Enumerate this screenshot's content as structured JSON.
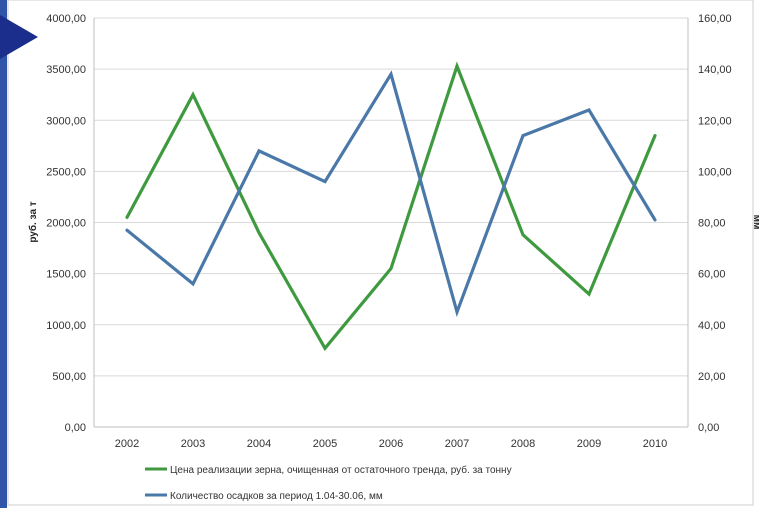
{
  "chart_data": {
    "type": "line",
    "categories": [
      "2002",
      "2003",
      "2004",
      "2005",
      "2006",
      "2007",
      "2008",
      "2009",
      "2010"
    ],
    "y_left": {
      "label": "руб. за т",
      "ylim": [
        0,
        4000
      ],
      "ticks": [
        "0,00",
        "500,00",
        "1000,00",
        "1500,00",
        "2000,00",
        "2500,00",
        "3000,00",
        "3500,00",
        "4000,00"
      ]
    },
    "y_right": {
      "label": "мм",
      "ylim": [
        0,
        160
      ],
      "ticks": [
        "0,00",
        "20,00",
        "40,00",
        "60,00",
        "80,00",
        "100,00",
        "120,00",
        "140,00",
        "160,00"
      ]
    },
    "series": [
      {
        "name": "Цена реализации зерна, очищенная от остаточного тренда, руб. за тонну",
        "axis": "left",
        "color": "#3f9a3f",
        "values": [
          2050,
          3250,
          1900,
          770,
          1550,
          3530,
          1880,
          1300,
          2850
        ]
      },
      {
        "name": "Количество осадков за период 1.04-30.06, мм",
        "axis": "right",
        "color": "#4a78a8",
        "values": [
          77,
          56,
          108,
          96,
          138,
          45,
          114,
          124,
          81
        ]
      }
    ],
    "grid": true,
    "legend_position": "bottom"
  }
}
